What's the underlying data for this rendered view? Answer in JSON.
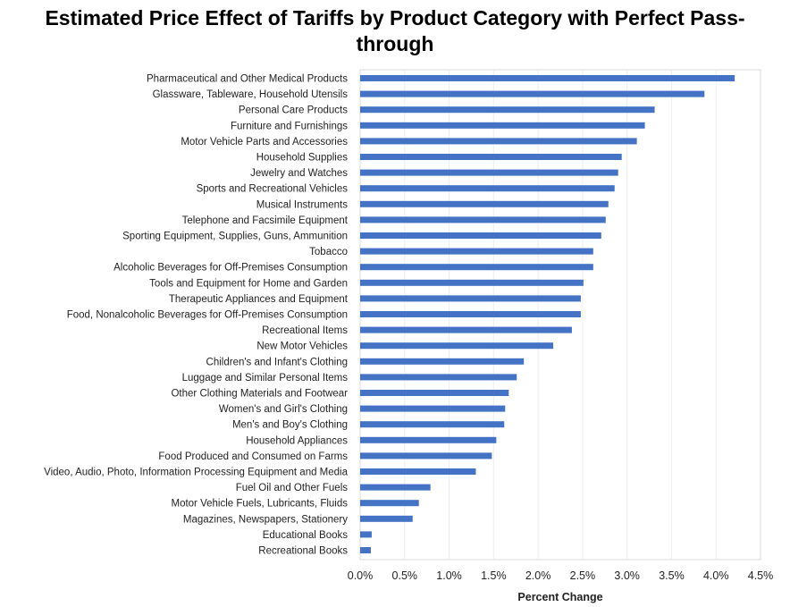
{
  "chart_data": {
    "type": "bar",
    "orientation": "horizontal",
    "title_line1": "Estimated Price Effect of Tariffs by Product Category with Perfect Pass-",
    "title_line2": "through",
    "xlabel": "Percent Change",
    "xlim": [
      0,
      4.5
    ],
    "xticks": [
      "0.0%",
      "0.5%",
      "1.0%",
      "1.5%",
      "2.0%",
      "2.5%",
      "3.0%",
      "3.5%",
      "4.0%",
      "4.5%"
    ],
    "bar_color": "#4472C4",
    "categories": [
      "Pharmaceutical and Other Medical Products",
      "Glassware, Tableware, Household Utensils",
      "Personal Care Products",
      "Furniture and Furnishings",
      "Motor Vehicle Parts and Accessories",
      "Household Supplies",
      "Jewelry and Watches",
      "Sports and Recreational Vehicles",
      "Musical Instruments",
      "Telephone and Facsimile Equipment",
      "Sporting Equipment, Supplies, Guns, Ammunition",
      "Tobacco",
      "Alcoholic Beverages for Off-Premises Consumption",
      "Tools and Equipment for Home and Garden",
      "Therapeutic Appliances and Equipment",
      "Food, Nonalcoholic Beverages for Off-Premises Consumption",
      "Recreational Items",
      "New Motor Vehicles",
      "Children's and Infant's Clothing",
      "Luggage and Similar Personal Items",
      "Other Clothing Materials and Footwear",
      "Women's and Girl's Clothing",
      "Men's and Boy's Clothing",
      "Household Appliances",
      "Food Produced and Consumed on Farms",
      "Video, Audio, Photo, Information Processing Equipment and Media",
      "Fuel Oil and Other Fuels",
      "Motor Vehicle Fuels, Lubricants, Fluids",
      "Magazines, Newspapers, Stationery",
      "Educational Books",
      "Recreational Books"
    ],
    "values": [
      4.21,
      3.87,
      3.31,
      3.2,
      3.11,
      2.94,
      2.9,
      2.86,
      2.79,
      2.76,
      2.71,
      2.62,
      2.62,
      2.51,
      2.48,
      2.48,
      2.38,
      2.17,
      1.84,
      1.76,
      1.67,
      1.63,
      1.62,
      1.53,
      1.48,
      1.3,
      0.79,
      0.66,
      0.59,
      0.13,
      0.12
    ]
  }
}
